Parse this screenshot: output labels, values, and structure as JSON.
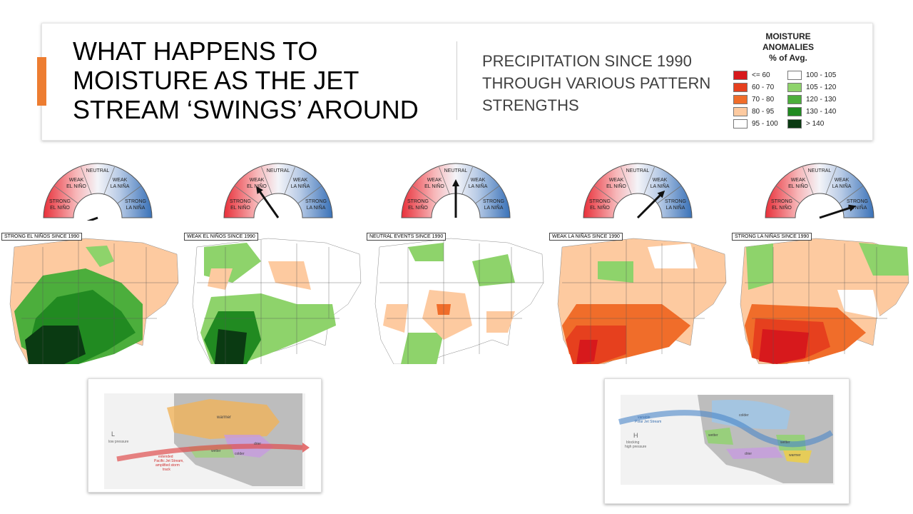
{
  "header": {
    "title": "WHAT HAPPENS TO MOISTURE AS THE JET STREAM ‘SWINGS’ AROUND",
    "subtitle": "PRECIPITATION SINCE 1990 THROUGH VARIOUS PATTERN STRENGTHS"
  },
  "legend": {
    "title_line1": "MOISTURE",
    "title_line2": "ANOMALIES",
    "title_line3": "% of Avg.",
    "items": [
      {
        "label": "<= 60",
        "color": "#d7191c"
      },
      {
        "label": "60 - 70",
        "color": "#e6401e"
      },
      {
        "label": "70 - 80",
        "color": "#f06d2a"
      },
      {
        "label": "80 - 95",
        "color": "#fdcaa0"
      },
      {
        "label": "95 - 100",
        "color": "#ffffff"
      },
      {
        "label": "100 - 105",
        "color": "#ffffff"
      },
      {
        "label": "105 - 120",
        "color": "#8ed36b"
      },
      {
        "label": "120 - 130",
        "color": "#4cae3c"
      },
      {
        "label": "130 - 140",
        "color": "#218a21"
      },
      {
        "label": "> 140",
        "color": "#0a3a12"
      }
    ]
  },
  "gauge_labels": {
    "strong_el_nino_1": "STRONG",
    "strong_el_nino_2": "EL NIÑO",
    "weak_el_nino_1": "WEAK",
    "weak_el_nino_2": "EL NIÑO",
    "neutral": "NEUTRAL",
    "weak_la_nina_1": "WEAK",
    "weak_la_nina_2": "LA NIÑA",
    "strong_la_nina_1": "STRONG",
    "strong_la_nina_2": "LA NIÑA"
  },
  "gauges": [
    {
      "needle_angle_deg": 200
    },
    {
      "needle_angle_deg": 125
    },
    {
      "needle_angle_deg": 90
    },
    {
      "needle_angle_deg": 45
    },
    {
      "needle_angle_deg": 18
    }
  ],
  "maps": [
    {
      "label": "STRONG EL NIÑOS SINCE 1990"
    },
    {
      "label": "WEAK EL NIÑOS SINCE 1990"
    },
    {
      "label": "NEUTRAL EVENTS SINCE 1990"
    },
    {
      "label": "WEAK LA NIÑAS SINCE 1990"
    },
    {
      "label": "STRONG LA NIÑAS SINCE 1990"
    }
  ],
  "el_nino_map": {
    "warmer": "warmer",
    "low_pressure_symbol": "L",
    "low_pressure": "low pressure",
    "wetter": "wetter",
    "drier": "drier",
    "colder": "colder",
    "jet_line1": "extended",
    "jet_line2": "Pacific Jet Stream,",
    "jet_line3": "amplified storm",
    "jet_line4": "track"
  },
  "la_nina_map": {
    "jet_line1": "variable",
    "jet_line2": "Polar Jet Stream",
    "high_symbol": "H",
    "blocking_line1": "blocking",
    "blocking_line2": "high pressure",
    "colder": "colder",
    "wetter_w": "wetter",
    "wetter_e": "wetter",
    "drier": "drier",
    "warmer": "warmer"
  }
}
